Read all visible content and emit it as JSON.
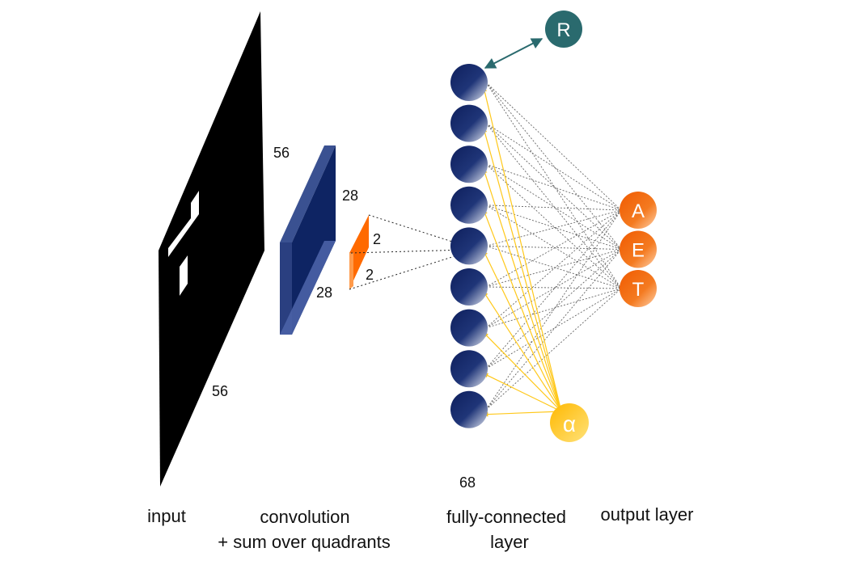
{
  "input": {
    "width_label": "56",
    "height_label": "56",
    "caption": "input",
    "color": "#000000"
  },
  "convolution": {
    "width_label": "28",
    "height_label": "28",
    "caption_line1": "convolution",
    "caption_line2": "+ sum over quadrants",
    "color": "#0e2463",
    "edge_color": "#3a5191"
  },
  "pooled": {
    "width_label": "2",
    "height_label": "2",
    "color": "#ff6a00"
  },
  "fully_connected": {
    "count_label": "68",
    "caption_line1": "fully-connected",
    "caption_line2": "layer",
    "visible_nodes": 9,
    "color_dark": "#0e1f5c",
    "color_light": "#dfe4f0"
  },
  "output_layer": {
    "caption": "output layer",
    "nodes": [
      "A",
      "E",
      "T"
    ],
    "color": "#f46a10"
  },
  "extra_nodes": {
    "reward_label": "R",
    "reward_color": "#2a6a6e",
    "alpha_label": "α",
    "alpha_color": "#ffc81a"
  },
  "connection_colors": {
    "fc_to_output": "#666666",
    "alpha_to_fc": "#ffc81a",
    "reward_arrow": "#2a6a6e"
  }
}
